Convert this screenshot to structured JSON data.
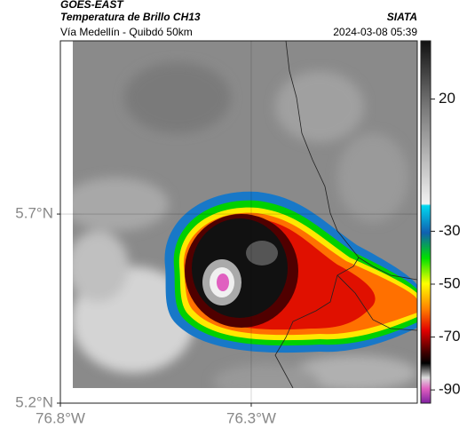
{
  "header": {
    "satellite": "GOES-EAST",
    "product": "Temperatura de Brillo CH13",
    "source": "SIATA",
    "region": "Vía Medellín - Quibdó 50km",
    "datetime": "2024-03-08 05:39"
  },
  "map": {
    "xlim": [
      -76.8,
      -75.865
    ],
    "ylim": [
      5.2,
      6.158
    ],
    "xticks": [
      {
        "value": -76.8,
        "label": "76.8°W"
      },
      {
        "value": -76.3,
        "label": "76.3°W"
      }
    ],
    "yticks": [
      {
        "value": 5.2,
        "label": "5.2°N"
      },
      {
        "value": 5.7,
        "label": "5.7°N"
      }
    ]
  },
  "colorbar": {
    "lim": [
      -95,
      42
    ],
    "ticks": [
      20,
      -30,
      -50,
      -70,
      -90
    ]
  }
}
